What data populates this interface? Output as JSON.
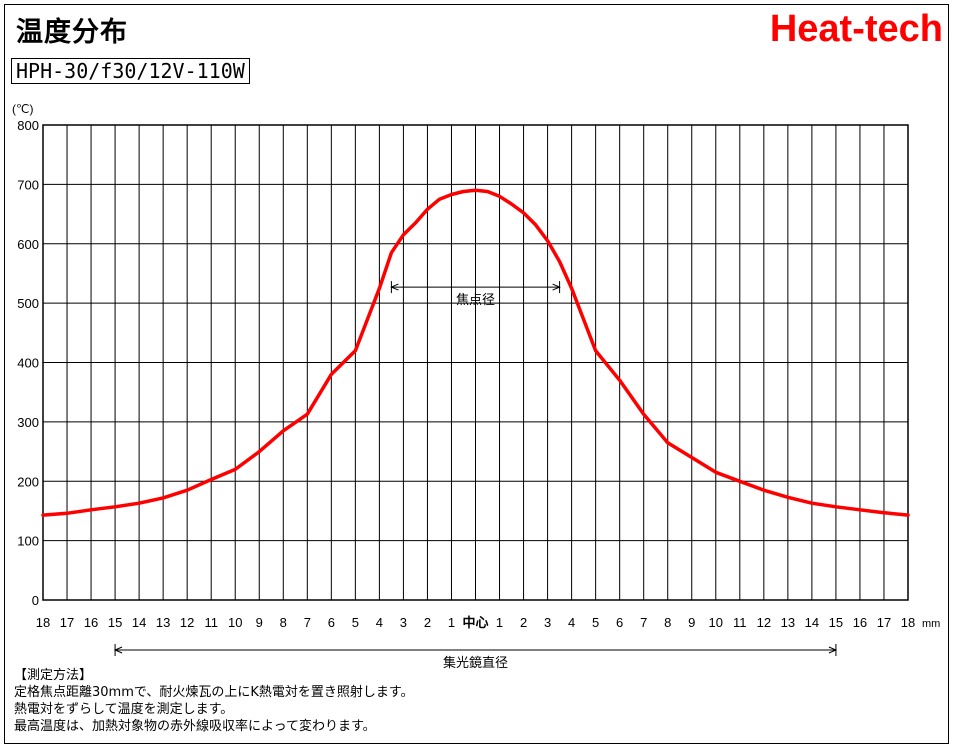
{
  "page": {
    "title": "温度分布",
    "brand": "Heat-tech",
    "model": "HPH-30/f30/12V-110W",
    "notes": [
      "【測定方法】",
      "定格焦点距離30mmで、耐火煉瓦の上にK熱電対を置き照射します。",
      "熱電対をずらして温度を測定します。",
      "最高温度は、加熱対象物の赤外線吸収率によって変わります。"
    ]
  },
  "chart_data": {
    "type": "line",
    "ylabel": "(℃)",
    "xunit": "mm",
    "ylim": [
      0,
      800
    ],
    "yticks": [
      0,
      100,
      200,
      300,
      400,
      500,
      600,
      700,
      800
    ],
    "xlim": [
      -18,
      18
    ],
    "xticks": [
      {
        "v": -18,
        "label": "18"
      },
      {
        "v": -17,
        "label": "17"
      },
      {
        "v": -16,
        "label": "16"
      },
      {
        "v": -15,
        "label": "15"
      },
      {
        "v": -14,
        "label": "14"
      },
      {
        "v": -13,
        "label": "13"
      },
      {
        "v": -12,
        "label": "12"
      },
      {
        "v": -11,
        "label": "11"
      },
      {
        "v": -10,
        "label": "10"
      },
      {
        "v": -9,
        "label": "9"
      },
      {
        "v": -8,
        "label": "8"
      },
      {
        "v": -7,
        "label": "7"
      },
      {
        "v": -6,
        "label": "6"
      },
      {
        "v": -5,
        "label": "5"
      },
      {
        "v": -4,
        "label": "4"
      },
      {
        "v": -3,
        "label": "3"
      },
      {
        "v": -2,
        "label": "2"
      },
      {
        "v": -1,
        "label": "1"
      },
      {
        "v": 0,
        "label": "中心"
      },
      {
        "v": 1,
        "label": "1"
      },
      {
        "v": 2,
        "label": "2"
      },
      {
        "v": 3,
        "label": "3"
      },
      {
        "v": 4,
        "label": "4"
      },
      {
        "v": 5,
        "label": "5"
      },
      {
        "v": 6,
        "label": "6"
      },
      {
        "v": 7,
        "label": "7"
      },
      {
        "v": 8,
        "label": "8"
      },
      {
        "v": 9,
        "label": "9"
      },
      {
        "v": 10,
        "label": "10"
      },
      {
        "v": 11,
        "label": "11"
      },
      {
        "v": 12,
        "label": "12"
      },
      {
        "v": 13,
        "label": "13"
      },
      {
        "v": 14,
        "label": "14"
      },
      {
        "v": 15,
        "label": "15"
      },
      {
        "v": 16,
        "label": "16"
      },
      {
        "v": 17,
        "label": "17"
      },
      {
        "v": 18,
        "label": "18"
      }
    ],
    "grid": true,
    "line_color": "#ff0000",
    "series": [
      {
        "x": [
          -18,
          -17,
          -16,
          -15,
          -14,
          -13,
          -12,
          -11,
          -10,
          -9,
          -8,
          -7,
          -6,
          -5,
          -4,
          -3.5,
          -3,
          -2.5,
          -2,
          -1.5,
          -1,
          -0.5,
          0,
          0.5,
          1,
          1.5,
          2,
          2.5,
          3,
          3.5,
          4,
          5,
          6,
          7,
          8,
          9,
          10,
          11,
          12,
          13,
          14,
          15,
          16,
          17,
          18
        ],
        "values": [
          143,
          146,
          152,
          157,
          163,
          172,
          185,
          203,
          220,
          250,
          285,
          313,
          380,
          420,
          525,
          585,
          615,
          635,
          658,
          675,
          683,
          688,
          690,
          688,
          680,
          667,
          652,
          632,
          605,
          570,
          525,
          420,
          370,
          313,
          265,
          240,
          215,
          200,
          185,
          173,
          163,
          157,
          152,
          147,
          143
        ]
      }
    ],
    "annotations": [
      {
        "label": "焦点径",
        "from": -3.5,
        "to": 3.5,
        "y": 527
      },
      {
        "label": "集光鏡直径",
        "from": -15,
        "to": 15
      }
    ]
  }
}
